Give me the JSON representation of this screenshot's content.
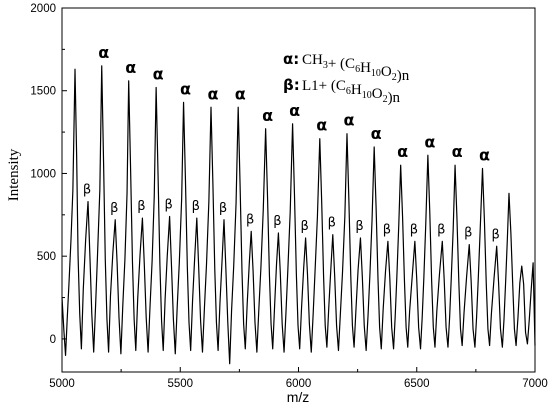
{
  "chart_data": {
    "type": "line",
    "xlabel": "m/z",
    "ylabel": "Intensity",
    "xlim": [
      5000,
      7000
    ],
    "ylim": [
      -200,
      2000
    ],
    "xticks": [
      5000,
      5500,
      6000,
      6500,
      7000
    ],
    "yticks": [
      0,
      500,
      1000,
      1500,
      2000
    ],
    "grid": false,
    "legend": {
      "position": "top-right",
      "entries": [
        {
          "symbol": "α:",
          "formula": "CH3+ (C6H10O2)n"
        },
        {
          "symbol": "β:",
          "formula": "L1+ (C6H10O2)n"
        }
      ]
    },
    "alpha_peaks": {
      "label": "α",
      "x": [
        5055,
        5168,
        5282,
        5398,
        5514,
        5630,
        5745,
        5861,
        5975,
        6090,
        6205,
        6320,
        6432,
        6547,
        6662,
        6778,
        6890
      ],
      "y": [
        1630,
        1650,
        1560,
        1520,
        1430,
        1400,
        1400,
        1270,
        1300,
        1210,
        1240,
        1160,
        1050,
        1110,
        1050,
        1030,
        880
      ]
    },
    "beta_peaks": {
      "label": "β",
      "x": [
        5110,
        5225,
        5340,
        5455,
        5570,
        5685,
        5800,
        5915,
        6030,
        6145,
        6262,
        6378,
        6492,
        6608,
        6722,
        6838
      ],
      "y": [
        830,
        720,
        730,
        740,
        730,
        720,
        650,
        640,
        610,
        630,
        610,
        590,
        590,
        590,
        570,
        560
      ]
    },
    "series": [
      {
        "x": [
          5000,
          5008,
          5015,
          5022,
          5030,
          5038,
          5046,
          5055,
          5062,
          5068,
          5075,
          5082,
          5090,
          5100,
          5110,
          5118,
          5126,
          5134,
          5142,
          5150,
          5160,
          5168,
          5176,
          5183,
          5190,
          5197,
          5205,
          5215,
          5225,
          5233,
          5241,
          5249,
          5257,
          5266,
          5275,
          5282,
          5290,
          5298,
          5305,
          5312,
          5320,
          5330,
          5340,
          5348,
          5356,
          5364,
          5372,
          5381,
          5390,
          5398,
          5406,
          5414,
          5421,
          5428,
          5436,
          5445,
          5455,
          5463,
          5471,
          5479,
          5487,
          5496,
          5506,
          5514,
          5522,
          5530,
          5537,
          5544,
          5552,
          5561,
          5570,
          5578,
          5586,
          5594,
          5602,
          5611,
          5621,
          5630,
          5638,
          5646,
          5653,
          5660,
          5668,
          5677,
          5685,
          5693,
          5701,
          5709,
          5717,
          5726,
          5736,
          5745,
          5753,
          5761,
          5768,
          5775,
          5783,
          5792,
          5800,
          5808,
          5816,
          5824,
          5832,
          5841,
          5851,
          5861,
          5869,
          5877,
          5884,
          5891,
          5899,
          5907,
          5915,
          5923,
          5931,
          5939,
          5947,
          5955,
          5965,
          5975,
          5983,
          5991,
          5998,
          6005,
          6013,
          6022,
          6030,
          6038,
          6046,
          6054,
          6062,
          6070,
          6080,
          6090,
          6098,
          6106,
          6113,
          6120,
          6128,
          6137,
          6145,
          6153,
          6161,
          6169,
          6177,
          6186,
          6196,
          6205,
          6213,
          6221,
          6228,
          6235,
          6243,
          6252,
          6262,
          6270,
          6278,
          6286,
          6294,
          6302,
          6311,
          6320,
          6328,
          6336,
          6343,
          6350,
          6358,
          6368,
          6378,
          6386,
          6394,
          6402,
          6409,
          6416,
          6424,
          6432,
          6440,
          6448,
          6455,
          6462,
          6470,
          6482,
          6492,
          6500,
          6508,
          6516,
          6523,
          6530,
          6538,
          6547,
          6555,
          6563,
          6570,
          6577,
          6585,
          6596,
          6608,
          6616,
          6624,
          6632,
          6639,
          6646,
          6654,
          6662,
          6670,
          6678,
          6685,
          6692,
          6700,
          6711,
          6722,
          6730,
          6738,
          6746,
          6753,
          6760,
          6768,
          6778,
          6786,
          6794,
          6801,
          6808,
          6816,
          6827,
          6838,
          6846,
          6854,
          6862,
          6869,
          6876,
          6883,
          6890,
          6898,
          6906,
          6913,
          6920,
          6928,
          6936,
          6944,
          6952,
          6960,
          6968,
          6976,
          6984,
          6992,
          7000
        ],
        "y": [
          250,
          50,
          -100,
          120,
          350,
          600,
          900,
          1630,
          1100,
          500,
          150,
          -60,
          300,
          600,
          830,
          500,
          150,
          -80,
          200,
          500,
          900,
          1650,
          1050,
          480,
          120,
          -80,
          260,
          520,
          720,
          460,
          130,
          -90,
          200,
          480,
          880,
          1560,
          1030,
          460,
          120,
          -70,
          240,
          510,
          730,
          450,
          130,
          -80,
          190,
          470,
          860,
          1520,
          1000,
          450,
          110,
          -70,
          240,
          500,
          740,
          440,
          120,
          -90,
          190,
          460,
          850,
          1430,
          960,
          430,
          100,
          -70,
          230,
          490,
          730,
          430,
          110,
          -80,
          180,
          450,
          830,
          1400,
          940,
          420,
          100,
          -70,
          220,
          480,
          720,
          420,
          100,
          -150,
          170,
          440,
          820,
          1400,
          930,
          410,
          90,
          -60,
          210,
          460,
          650,
          410,
          100,
          -80,
          170,
          430,
          780,
          1270,
          860,
          390,
          90,
          -60,
          200,
          450,
          640,
          400,
          90,
          -80,
          160,
          420,
          770,
          1300,
          870,
          390,
          80,
          -60,
          190,
          430,
          610,
          390,
          90,
          -80,
          150,
          410,
          740,
          1210,
          830,
          380,
          80,
          -50,
          190,
          430,
          630,
          380,
          80,
          -70,
          150,
          400,
          740,
          1240,
          840,
          380,
          80,
          -50,
          180,
          420,
          610,
          370,
          80,
          -70,
          140,
          390,
          720,
          1160,
          800,
          370,
          70,
          -60,
          180,
          410,
          590,
          370,
          70,
          -60,
          140,
          380,
          690,
          1050,
          740,
          350,
          70,
          -50,
          170,
          400,
          590,
          360,
          70,
          -60,
          130,
          370,
          690,
          1110,
          770,
          350,
          70,
          -50,
          170,
          390,
          590,
          360,
          70,
          -50,
          130,
          370,
          660,
          1050,
          730,
          340,
          60,
          -40,
          160,
          380,
          570,
          350,
          60,
          -50,
          130,
          360,
          650,
          1030,
          720,
          330,
          60,
          -40,
          160,
          370,
          560,
          340,
          60,
          -50,
          120,
          350,
          600,
          880,
          640,
          320,
          60,
          -40,
          130,
          340,
          440,
          330,
          40,
          -30,
          120,
          300,
          460,
          -40
        ]
      }
    ]
  }
}
